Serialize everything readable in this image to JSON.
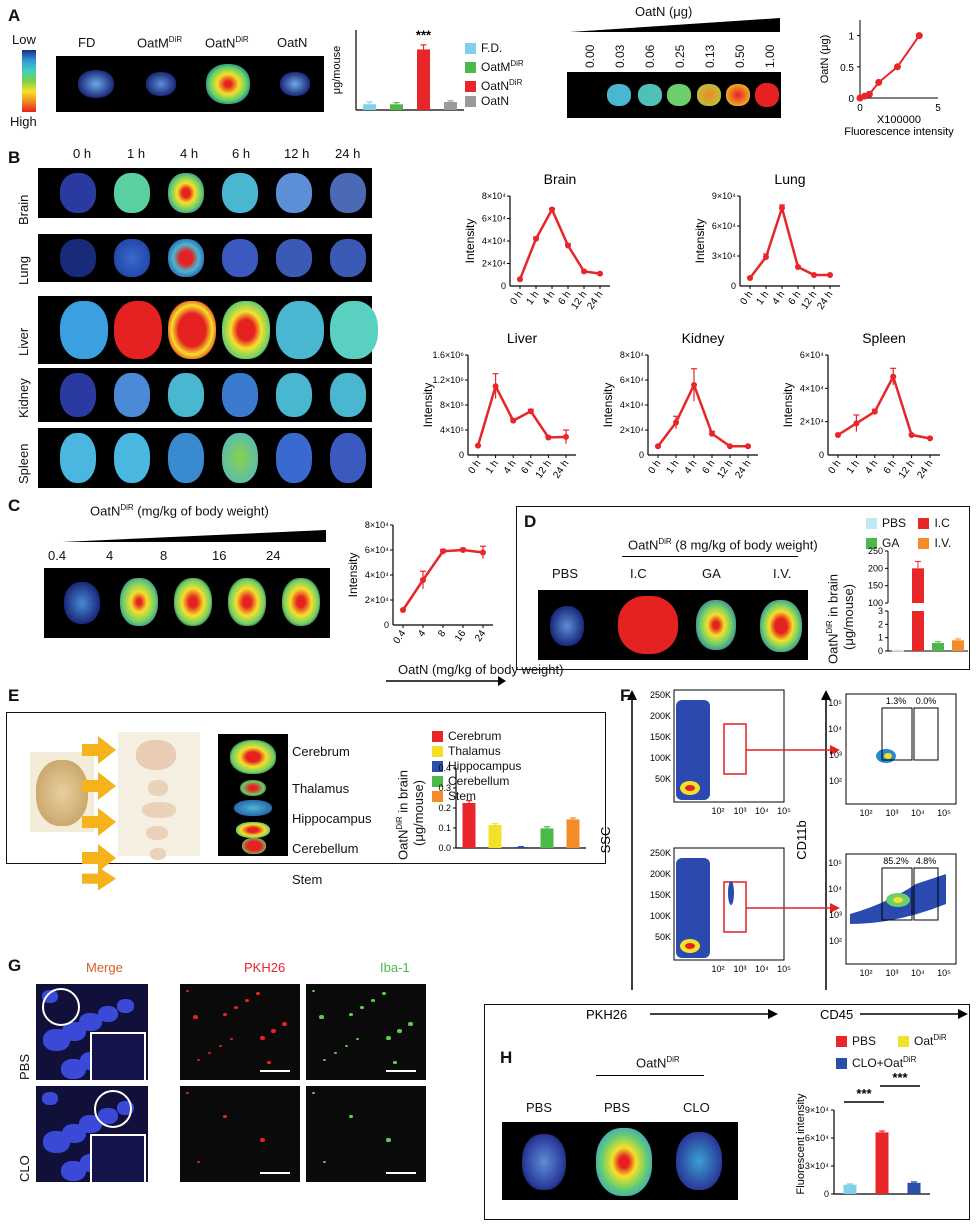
{
  "panels": {
    "A": {
      "letter": "A",
      "scale_low": "Low",
      "scale_high": "High",
      "image_labels": [
        "FD",
        "OatM",
        "OatN",
        "OatN"
      ],
      "image_label_sups": [
        "",
        "DiR",
        "DiR",
        ""
      ],
      "bar_ylabel": "μg/mouse",
      "significance": "***",
      "legend": [
        "F.D.",
        "OatM",
        "OatN",
        "OatN"
      ],
      "legend_sups": [
        "",
        "DiR",
        "DiR",
        ""
      ],
      "dose_title": "OatN (μg)",
      "dose_values": [
        "0.00",
        "0.03",
        "0.06",
        "0.25",
        "0.13",
        "0.50",
        "1.00"
      ],
      "std_ylabel": "OatN (μg)",
      "std_xlabel_1": "X100000",
      "std_xlabel_2": "Fluorescence intensity"
    },
    "B": {
      "letter": "B",
      "times": [
        "0 h",
        "1 h",
        "4 h",
        "6 h",
        "12 h",
        "24  h"
      ],
      "organs": [
        "Brain",
        "Lung",
        "Liver",
        "Kidney",
        "Spleen"
      ]
    },
    "C": {
      "letter": "C",
      "title": "OatN",
      "title_sup": "DiR",
      "title_rest": " (mg/kg of body weight)",
      "doses": [
        "0.4",
        "4",
        "8",
        "16",
        "24"
      ],
      "xlabel": "OatN (mg/kg of body weight)"
    },
    "D": {
      "letter": "D",
      "title": "OatN",
      "title_sup": "DiR",
      "title_rest": " (8 mg/kg of body weight)",
      "groups": [
        "PBS",
        "I.C",
        "GA",
        "I.V."
      ],
      "legend": [
        "PBS",
        "I.C",
        "GA",
        "I.V."
      ],
      "ylabel_1": "OatN",
      "ylabel_sup": "DiR",
      "ylabel_2": " in brain",
      "ylabel_3": "(μg/mouse)"
    },
    "E": {
      "letter": "E",
      "regions": [
        "Cerebrum",
        "Thalamus",
        "Hippocampus",
        "Cerebellum",
        "Stem"
      ],
      "legend": [
        "Cerebrum",
        "Thalamus",
        "Hippocampus",
        "Cerebellum",
        "Stem"
      ],
      "ylabel_1": "OatN",
      "ylabel_sup": "DiR",
      "ylabel_2": " in brain",
      "ylabel_3": "(μg/mouse)"
    },
    "F": {
      "letter": "F",
      "y1": "SSC",
      "x1": "PKH26",
      "y2": "CD11b",
      "x2": "CD45",
      "gate_top": [
        "1.3%",
        "0.0%"
      ],
      "gate_bottom": [
        "85.2%",
        "4.8%"
      ],
      "ssc_ticks": [
        "250K",
        "200K",
        "150K",
        "100K",
        "50K"
      ]
    },
    "G": {
      "letter": "G",
      "columns": [
        "Merge",
        "PKH26",
        "Iba-1"
      ],
      "rows": [
        "PBS",
        "CLO"
      ]
    },
    "H": {
      "letter": "H",
      "group_title": "OatN",
      "group_title_sup": "DiR",
      "groups": [
        "PBS",
        "PBS",
        "CLO"
      ],
      "legend": [
        "PBS",
        "Oat",
        "CLO+Oat"
      ],
      "legend_sups": [
        "",
        "DiR",
        "DiR"
      ],
      "ylabel": "Fluorescent intensity",
      "significance": [
        "***",
        "***"
      ]
    }
  },
  "colors": {
    "red": "#e8262a",
    "lightblue": "#7fd0e8",
    "green": "#4cb848",
    "gray": "#9a9a9a",
    "yellow": "#f2e12b",
    "blue": "#2a4fa8",
    "orange": "#f28b28",
    "arrow": "#f5b31b"
  },
  "chart_data": [
    {
      "id": "A-bar",
      "type": "bar",
      "categories": [
        "F.D.",
        "OatM DiR",
        "OatN DiR",
        "OatN"
      ],
      "values": [
        0.05,
        0.05,
        0.53,
        0.07
      ],
      "errors": [
        0.02,
        0.015,
        0.04,
        0.01
      ],
      "ylabel": "μg/mouse",
      "ylim": [
        0,
        0.7
      ]
    },
    {
      "id": "A-std",
      "type": "line",
      "x": [
        0,
        0.3,
        0.6,
        1.2,
        2.4,
        3.8
      ],
      "y": [
        0,
        0.03,
        0.06,
        0.25,
        0.5,
        1.0
      ],
      "xlabel": "X100000 Fluorescence intensity",
      "ylabel": "OatN (μg)",
      "xlim": [
        0,
        5
      ],
      "ylim": [
        0,
        1.25
      ],
      "xticks": [
        "0",
        "5"
      ],
      "yticks": [
        "0",
        "0.5",
        "1"
      ]
    },
    {
      "id": "B-brain",
      "type": "line",
      "title": "Brain",
      "ylabel": "Intensity",
      "x": [
        "0 h",
        "1 h",
        "4 h",
        "6 h",
        "12 h",
        "24 h"
      ],
      "y": [
        6000,
        42000,
        68000,
        36000,
        13000,
        11000
      ],
      "errors": [
        500,
        1500,
        1000,
        1500,
        500,
        500
      ],
      "ylim": [
        0,
        80000
      ],
      "yticks": [
        "2×10⁴",
        "4×10⁴",
        "6×10⁴",
        "8×10⁴"
      ]
    },
    {
      "id": "B-lung",
      "type": "line",
      "title": "Lung",
      "ylabel": "Intensity",
      "x": [
        "0 h",
        "1 h",
        "4 h",
        "6 h",
        "12 h",
        "24 h"
      ],
      "y": [
        8000,
        29000,
        78000,
        19000,
        11000,
        11000
      ],
      "errors": [
        500,
        3000,
        3000,
        800,
        500,
        500
      ],
      "ylim": [
        0,
        90000
      ],
      "yticks": [
        "3×10⁴",
        "6×10⁴",
        "9×10⁴"
      ]
    },
    {
      "id": "B-liver",
      "type": "line",
      "title": "Liver",
      "ylabel": "Intensity",
      "x": [
        "0 h",
        "1 h",
        "4 h",
        "6 h",
        "12 h",
        "24 h"
      ],
      "y": [
        150000,
        1100000,
        550000,
        700000,
        280000,
        290000
      ],
      "errors": [
        10000,
        200000,
        30000,
        30000,
        20000,
        110000
      ],
      "ylim": [
        0,
        1600000
      ],
      "yticks": [
        "4×10⁵",
        "8×10⁵",
        "1.2×10⁶",
        "1.6×10⁶"
      ]
    },
    {
      "id": "B-kidney",
      "type": "line",
      "title": "Kidney",
      "ylabel": "Intensity",
      "x": [
        "0 h",
        "1 h",
        "4 h",
        "6 h",
        "12 h",
        "24 h"
      ],
      "y": [
        7000,
        26000,
        56000,
        17000,
        7000,
        7000
      ],
      "errors": [
        500,
        5000,
        13000,
        2000,
        500,
        500
      ],
      "ylim": [
        0,
        80000
      ],
      "yticks": [
        "2×10⁴",
        "4×10⁴",
        "6×10⁴",
        "8×10⁴"
      ]
    },
    {
      "id": "B-spleen",
      "type": "line",
      "title": "Spleen",
      "ylabel": "Intensity",
      "x": [
        "0 h",
        "1 h",
        "4 h",
        "6 h",
        "12 h",
        "24 h"
      ],
      "y": [
        12000,
        19000,
        26000,
        47000,
        12000,
        10000
      ],
      "errors": [
        500,
        5000,
        1500,
        5000,
        500,
        500
      ],
      "ylim": [
        0,
        60000
      ],
      "yticks": [
        "2×10⁴",
        "4×10⁴",
        "6×10⁴"
      ]
    },
    {
      "id": "C-line",
      "type": "line",
      "ylabel": "Intensity",
      "x": [
        "0.4",
        "4",
        "8",
        "16",
        "24"
      ],
      "y": [
        12000,
        36000,
        59000,
        60000,
        58000
      ],
      "errors": [
        500,
        7000,
        1500,
        1500,
        5000
      ],
      "xlabel": "OatN (mg/kg of body weight)",
      "ylim": [
        0,
        80000
      ],
      "yticks": [
        "2×10⁴",
        "4×10⁴",
        "6×10⁴",
        "8×10⁴"
      ]
    },
    {
      "id": "D-bar",
      "type": "bar",
      "categories": [
        "PBS",
        "I.C",
        "GA",
        "I.V."
      ],
      "values": [
        0.05,
        200,
        0.6,
        0.8
      ],
      "errors": [
        0.02,
        20,
        0.1,
        0.1
      ],
      "ylabel": "OatN DiR in brain (μg/mouse)",
      "yticks": [
        "0",
        "1",
        "2",
        "3",
        "100",
        "150",
        "200",
        "250"
      ]
    },
    {
      "id": "E-bar",
      "type": "bar",
      "categories": [
        "Cerebrum",
        "Thalamus",
        "Hippocampus",
        "Cerebellum",
        "Stem"
      ],
      "values": [
        0.225,
        0.115,
        0.005,
        0.098,
        0.143
      ],
      "errors": [
        0.012,
        0.007,
        0.002,
        0.008,
        0.007
      ],
      "ylabel": "OatN DiR in brain (μg/mouse)",
      "ylim": [
        0,
        0.4
      ],
      "yticks": [
        "0.0",
        "0.1",
        "0.2",
        "0.3",
        "0.4"
      ]
    },
    {
      "id": "H-bar",
      "type": "bar",
      "categories": [
        "PBS",
        "Oat DiR",
        "CLO+Oat DiR"
      ],
      "values": [
        10000,
        66000,
        12000
      ],
      "errors": [
        800,
        1500,
        1000
      ],
      "ylabel": "Fluorescent intensity",
      "ylim": [
        0,
        90000
      ],
      "yticks": [
        "0",
        "3×10⁴",
        "6×10⁴",
        "9×10⁴"
      ]
    }
  ]
}
